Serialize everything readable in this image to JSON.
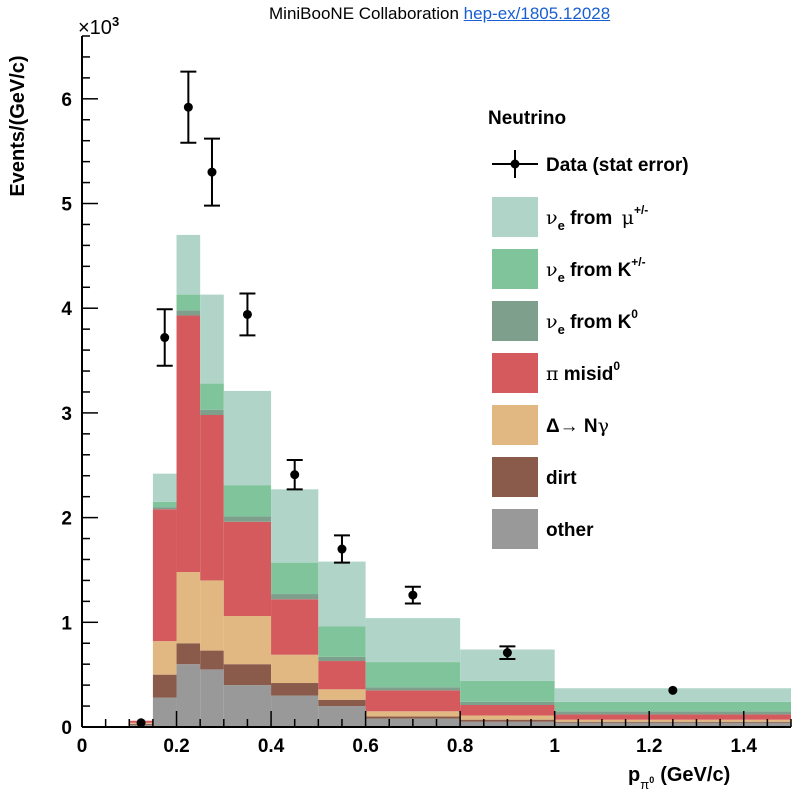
{
  "page": {
    "credit_text": "MiniBooNE Collaboration",
    "credit_link": "hep-ex/1805.12028"
  },
  "chart_data": {
    "type": "bar",
    "subtype": "stacked-histogram-with-data-points",
    "ylabel": "Events/(GeV/c)",
    "y_multiplier": "×10",
    "y_multiplier_exp": "3",
    "xlabel_main": "p",
    "xlabel_sub": "π",
    "xlabel_sup": "0",
    "xlabel_unit": "(GeV/c)",
    "xlim": [
      0,
      1.5
    ],
    "ylim": [
      0,
      6.6
    ],
    "x_ticks": [
      0,
      0.2,
      0.4,
      0.6,
      0.8,
      1,
      1.2,
      1.4
    ],
    "x_tick_labels": [
      "0",
      "0.2",
      "0.4",
      "0.6",
      "0.8",
      "1",
      "1.2",
      "1.4"
    ],
    "y_ticks": [
      0,
      1,
      2,
      3,
      4,
      5,
      6
    ],
    "y_tick_labels": [
      "0",
      "1",
      "2",
      "3",
      "4",
      "5",
      "6"
    ],
    "legend_title": "Neutrino",
    "legend_position": "top-right",
    "bin_edges": [
      0.1,
      0.15,
      0.2,
      0.25,
      0.3,
      0.4,
      0.5,
      0.6,
      0.8,
      1.0,
      1.5
    ],
    "series": [
      {
        "key": "other",
        "name": "other",
        "color": "#999999",
        "values": [
          0.02,
          0.28,
          0.6,
          0.55,
          0.4,
          0.3,
          0.2,
          0.08,
          0.05,
          0.04
        ]
      },
      {
        "key": "dirt",
        "name": "dirt",
        "color": "#8a5b4a",
        "values": [
          0.01,
          0.22,
          0.2,
          0.18,
          0.2,
          0.12,
          0.06,
          0.02,
          0.02,
          0.01
        ]
      },
      {
        "key": "delta",
        "name_pre": "Δ→ N",
        "name_greek": "γ",
        "color": "#e1b881",
        "values": [
          0.01,
          0.32,
          0.68,
          0.67,
          0.46,
          0.27,
          0.1,
          0.05,
          0.04,
          0.02
        ]
      },
      {
        "key": "pi0",
        "name_greek": "π",
        "name_sup": "0",
        "name_post": " misid",
        "color": "#d45a5e",
        "values": [
          0.02,
          1.26,
          2.45,
          1.58,
          0.9,
          0.53,
          0.27,
          0.2,
          0.1,
          0.05
        ]
      },
      {
        "key": "k0",
        "name_greek": "ν",
        "name_sub": "e",
        "name_post": " from K",
        "name_sup": "0",
        "color": "#7f9f8d",
        "values": [
          0.0,
          0.02,
          0.05,
          0.05,
          0.05,
          0.05,
          0.04,
          0.03,
          0.03,
          0.03
        ]
      },
      {
        "key": "kpm",
        "name_greek": "ν",
        "name_sub": "e",
        "name_post": " from K",
        "name_sup": "+/-",
        "color": "#7fc49a",
        "values": [
          0.0,
          0.05,
          0.15,
          0.25,
          0.3,
          0.3,
          0.29,
          0.24,
          0.2,
          0.09
        ]
      },
      {
        "key": "mupm",
        "name_greek": "ν",
        "name_sub": "e",
        "name_post": " from ",
        "name_greek2": "μ",
        "name_sup": "+/-",
        "color": "#b0d5c8",
        "values": [
          0.0,
          0.27,
          0.57,
          0.85,
          0.9,
          0.7,
          0.62,
          0.42,
          0.3,
          0.13
        ]
      }
    ],
    "data_points": {
      "name": "Data (stat error)",
      "x": [
        0.125,
        0.175,
        0.225,
        0.275,
        0.35,
        0.45,
        0.55,
        0.7,
        0.9,
        1.25
      ],
      "y": [
        0.04,
        3.72,
        5.92,
        5.3,
        3.94,
        2.41,
        1.7,
        1.26,
        0.71,
        0.35
      ],
      "err": [
        0.0,
        0.27,
        0.34,
        0.32,
        0.2,
        0.14,
        0.13,
        0.08,
        0.06,
        0.0
      ]
    }
  }
}
